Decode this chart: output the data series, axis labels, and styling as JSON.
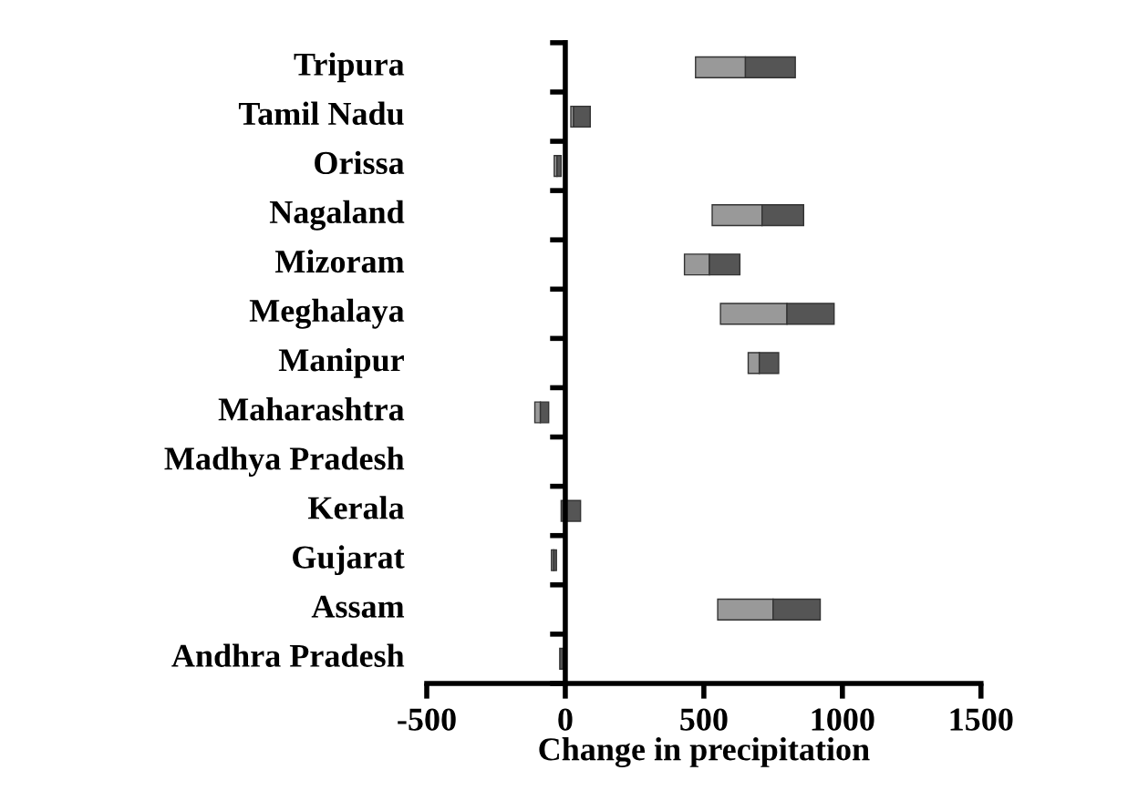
{
  "chart_data": {
    "type": "bar",
    "orientation": "horizontal",
    "xlabel": "Change in precipitation",
    "categories": [
      "Tripura",
      "Tamil Nadu",
      "Orissa",
      "Nagaland",
      "Mizoram",
      "Meghalaya",
      "Manipur",
      "Maharashtra",
      "Madhya Pradesh",
      "Kerala",
      "Gujarat",
      "Assam",
      "Andhra Pradesh"
    ],
    "series": [
      {
        "color": "#999999",
        "base": [
          470,
          20,
          -40,
          530,
          430,
          560,
          660,
          -110,
          null,
          null,
          -50,
          550,
          null
        ],
        "values": [
          180,
          10,
          10,
          180,
          90,
          240,
          40,
          20,
          null,
          null,
          8,
          200,
          null
        ]
      },
      {
        "color": "#555555",
        "base": [
          650,
          30,
          -30,
          710,
          520,
          800,
          700,
          -90,
          null,
          -15,
          -42,
          750,
          -20
        ],
        "values": [
          180,
          60,
          15,
          150,
          110,
          170,
          70,
          30,
          null,
          70,
          10,
          170,
          12
        ]
      }
    ],
    "xlim": [
      -500,
      1500
    ],
    "xticks": [
      -500,
      0,
      500,
      1000,
      1500
    ]
  }
}
